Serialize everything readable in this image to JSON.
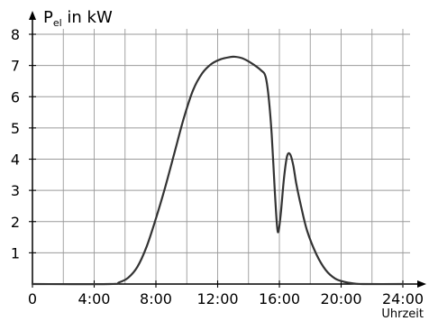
{
  "chart_data": {
    "type": "line",
    "ylabel": {
      "main": "P",
      "sub": "el",
      "unit": " in kW"
    },
    "xlabel": "Uhrzeit",
    "xlim": [
      0,
      24
    ],
    "ylim": [
      0,
      8
    ],
    "grid": true,
    "xticks": [
      0,
      4,
      8,
      12,
      16,
      20,
      24
    ],
    "xtick_labels": [
      "0",
      "4:00",
      "8:00",
      "12:00",
      "16:00",
      "20:00",
      "24:00"
    ],
    "yticks": [
      1,
      2,
      3,
      4,
      5,
      6,
      7,
      8
    ],
    "ytick_labels": [
      "1",
      "2",
      "3",
      "4",
      "5",
      "6",
      "7",
      "8"
    ],
    "series": [
      {
        "x": [
          0,
          5,
          5.6,
          6.2,
          6.8,
          7.4,
          8.0,
          8.6,
          9.2,
          9.8,
          10.4,
          11.0,
          11.6,
          12.2,
          12.8,
          13.1,
          13.6,
          14.2,
          14.8,
          15.1,
          15.3,
          15.5,
          15.7,
          15.85,
          15.95,
          16.1,
          16.3,
          16.5,
          16.7,
          16.9,
          17.1,
          17.4,
          17.8,
          18.4,
          19.0,
          19.6,
          20.2,
          20.8,
          21.4,
          24
        ],
        "y": [
          0,
          0,
          0.05,
          0.2,
          0.55,
          1.2,
          2.1,
          3.1,
          4.2,
          5.3,
          6.2,
          6.75,
          7.05,
          7.2,
          7.27,
          7.28,
          7.23,
          7.07,
          6.85,
          6.65,
          6.0,
          4.8,
          3.0,
          1.85,
          1.7,
          2.3,
          3.4,
          4.1,
          4.15,
          3.8,
          3.2,
          2.5,
          1.7,
          0.95,
          0.45,
          0.18,
          0.07,
          0.02,
          0,
          0
        ]
      }
    ]
  }
}
